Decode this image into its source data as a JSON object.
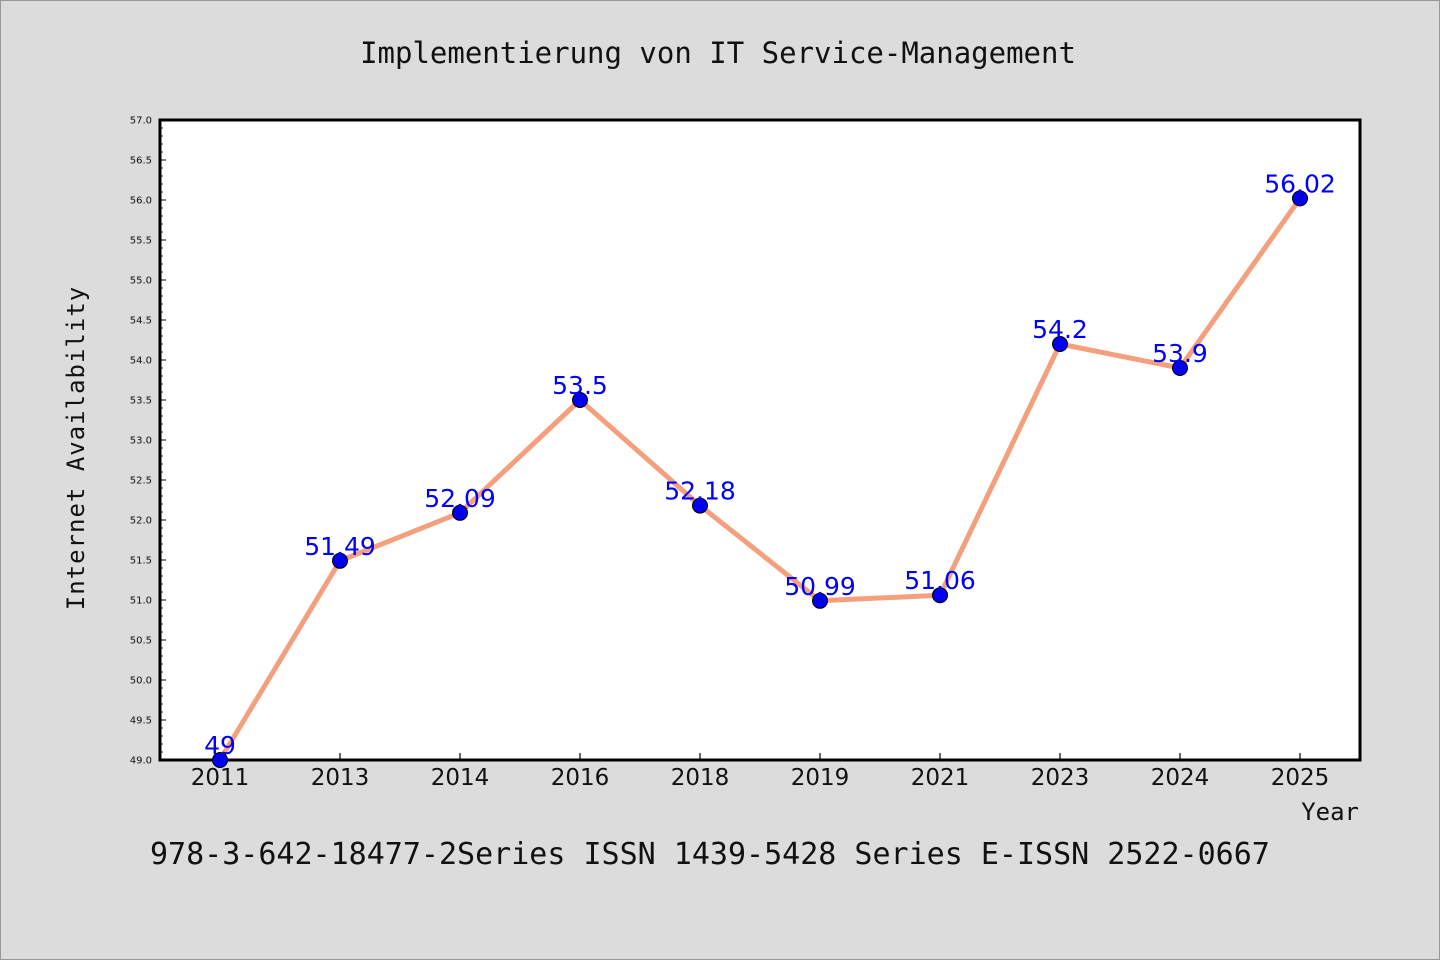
{
  "chart_data": {
    "type": "line",
    "title": "Implementierung von IT Service-Management",
    "xlabel": "Year",
    "ylabel": "Internet Availability",
    "categories": [
      "2011",
      "2013",
      "2014",
      "2016",
      "2018",
      "2019",
      "2021",
      "2023",
      "2024",
      "2025"
    ],
    "series": [
      {
        "values": [
          49,
          51.49,
          52.09,
          53.5,
          52.18,
          50.99,
          51.06,
          54.2,
          53.9,
          56.02
        ]
      }
    ],
    "data_labels": [
      "49",
      "51.49",
      "52.09",
      "53.5",
      "52.18",
      "50.99",
      "51.06",
      "54.2",
      "53.9",
      "56.02"
    ],
    "ylim": [
      49.0,
      57.0
    ],
    "yticks": [
      "49.0",
      "49.5",
      "50.0",
      "50.5",
      "51.0",
      "51.5",
      "52.0",
      "52.5",
      "53.0",
      "53.5",
      "54.0",
      "54.5",
      "55.0",
      "55.5",
      "56.0",
      "56.5",
      "57.0"
    ],
    "grid": false,
    "legend": "none",
    "colors": {
      "line": "#f4a07f",
      "marker": "#0000ee",
      "data_label": "#0000ff",
      "background": "#dcdcdc",
      "plot_background": "#ffffff"
    }
  },
  "footer": "978-3-642-18477-2Series ISSN 1439-5428 Series E-ISSN 2522-0667"
}
